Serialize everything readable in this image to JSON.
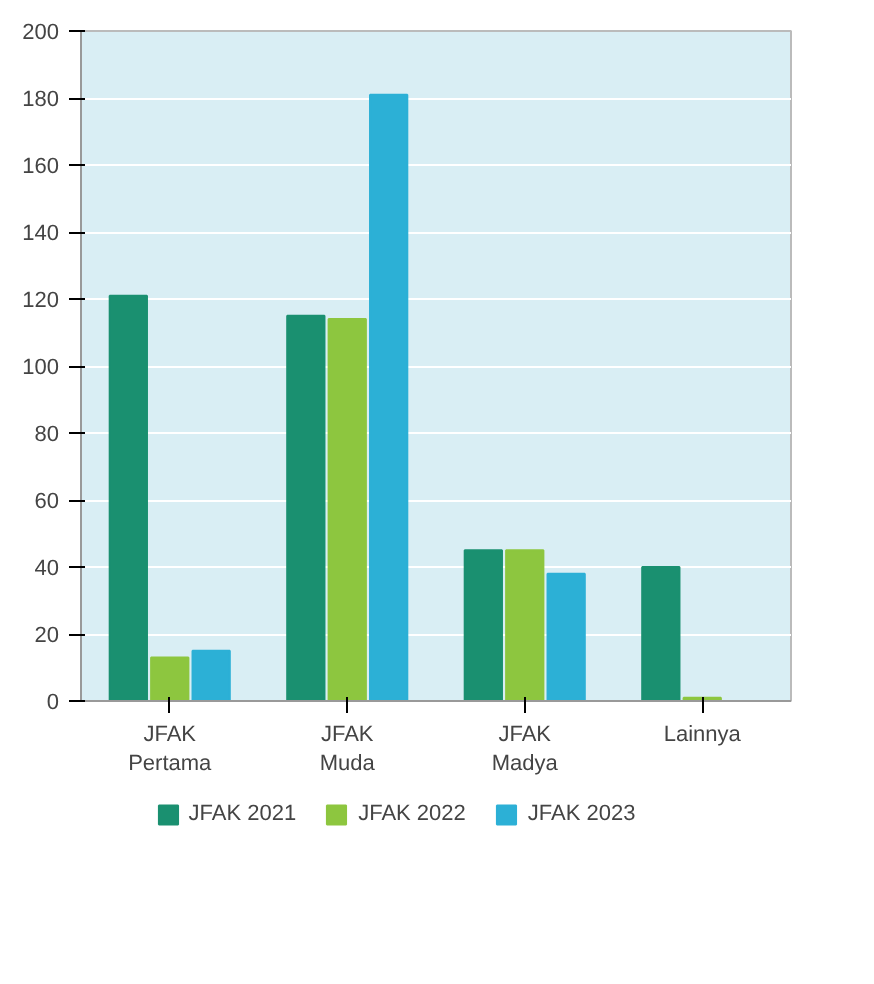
{
  "chart_data": {
    "type": "bar",
    "categories": [
      "JFAK\nPertama",
      "JFAK\nMuda",
      "JFAK\nMadya",
      "Lainnya"
    ],
    "series": [
      {
        "name": "JFAK 2021",
        "color": "#1a9070",
        "values": [
          121,
          115,
          45,
          40
        ]
      },
      {
        "name": "JFAK 2022",
        "color": "#8dc63f",
        "values": [
          13,
          114,
          45,
          1
        ]
      },
      {
        "name": "JFAK 2023",
        "color": "#2cb0d6",
        "values": [
          15,
          181,
          38,
          null
        ]
      }
    ],
    "ylim": [
      0,
      200
    ],
    "yticks": [
      0,
      20,
      40,
      60,
      80,
      100,
      120,
      140,
      160,
      180,
      200
    ],
    "grid": "y",
    "legend": "bottom"
  }
}
